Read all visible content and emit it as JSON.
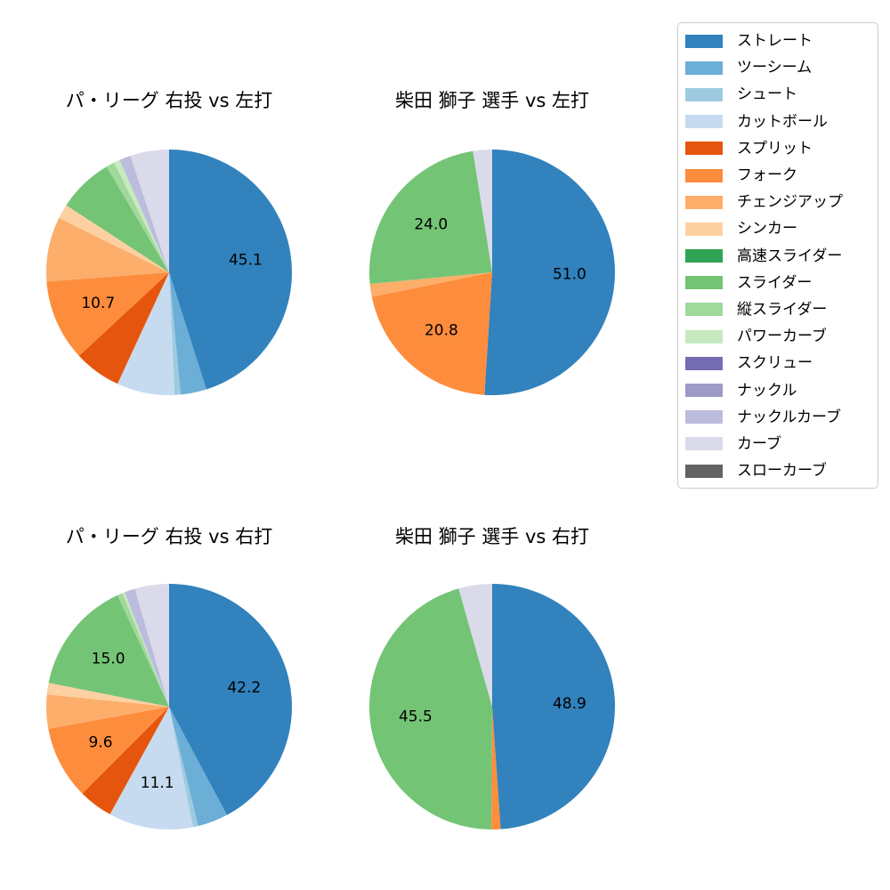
{
  "page": {
    "background_color": "#ffffff",
    "text_color": "#000000"
  },
  "chart_data": [
    {
      "type": "pie",
      "title": "パ・リーグ 右投 vs 左打",
      "start_angle": "top",
      "direction": "clockwise",
      "slices": [
        {
          "name": "ストレート",
          "value": 45.1,
          "label": "45.1"
        },
        {
          "name": "ツーシーム",
          "value": 3.4
        },
        {
          "name": "シュート",
          "value": 0.8
        },
        {
          "name": "カットボール",
          "value": 7.6
        },
        {
          "name": "スプリット",
          "value": 6.2
        },
        {
          "name": "フォーク",
          "value": 10.7,
          "label": "10.7"
        },
        {
          "name": "チェンジアップ",
          "value": 8.5
        },
        {
          "name": "シンカー",
          "value": 1.9
        },
        {
          "name": "スライダー",
          "value": 7.3
        },
        {
          "name": "縦スライダー",
          "value": 1.1
        },
        {
          "name": "パワーカーブ",
          "value": 0.8
        },
        {
          "name": "ナックルカーブ",
          "value": 1.5
        },
        {
          "name": "カーブ",
          "value": 5.1
        }
      ]
    },
    {
      "type": "pie",
      "title": "柴田 獅子 選手 vs 左打",
      "start_angle": "top",
      "direction": "clockwise",
      "slices": [
        {
          "name": "ストレート",
          "value": 51.0,
          "label": "51.0"
        },
        {
          "name": "フォーク",
          "value": 20.8,
          "label": "20.8"
        },
        {
          "name": "チェンジアップ",
          "value": 1.7
        },
        {
          "name": "スライダー",
          "value": 24.0,
          "label": "24.0"
        },
        {
          "name": "カーブ",
          "value": 2.5
        }
      ]
    },
    {
      "type": "pie",
      "title": "パ・リーグ 右投 vs 右打",
      "start_angle": "top",
      "direction": "clockwise",
      "slices": [
        {
          "name": "ストレート",
          "value": 42.2,
          "label": "42.2"
        },
        {
          "name": "ツーシーム",
          "value": 4.0
        },
        {
          "name": "シュート",
          "value": 0.7
        },
        {
          "name": "カットボール",
          "value": 11.1,
          "label": "11.1"
        },
        {
          "name": "スプリット",
          "value": 4.5
        },
        {
          "name": "フォーク",
          "value": 9.6,
          "label": "9.6"
        },
        {
          "name": "チェンジアップ",
          "value": 4.5
        },
        {
          "name": "シンカー",
          "value": 1.5
        },
        {
          "name": "スライダー",
          "value": 15.0,
          "label": "15.0"
        },
        {
          "name": "縦スライダー",
          "value": 0.7
        },
        {
          "name": "パワーカーブ",
          "value": 0.3
        },
        {
          "name": "ナックルカーブ",
          "value": 1.4
        },
        {
          "name": "カーブ",
          "value": 4.5
        }
      ]
    },
    {
      "type": "pie",
      "title": "柴田 獅子 選手 vs 右打",
      "start_angle": "top",
      "direction": "clockwise",
      "slices": [
        {
          "name": "ストレート",
          "value": 48.9,
          "label": "48.9"
        },
        {
          "name": "フォーク",
          "value": 1.2
        },
        {
          "name": "スライダー",
          "value": 45.5,
          "label": "45.5"
        },
        {
          "name": "カーブ",
          "value": 4.4
        }
      ]
    }
  ],
  "legend": {
    "position": "top-right",
    "border_color": "#cccccc",
    "entries": [
      {
        "label": "ストレート",
        "color": "#3182bd"
      },
      {
        "label": "ツーシーム",
        "color": "#6baed6"
      },
      {
        "label": "シュート",
        "color": "#9ecae1"
      },
      {
        "label": "カットボール",
        "color": "#c6dbef"
      },
      {
        "label": "スプリット",
        "color": "#e6550d"
      },
      {
        "label": "フォーク",
        "color": "#fd8d3c"
      },
      {
        "label": "チェンジアップ",
        "color": "#fdae6b"
      },
      {
        "label": "シンカー",
        "color": "#fdd0a2"
      },
      {
        "label": "高速スライダー",
        "color": "#31a354"
      },
      {
        "label": "スライダー",
        "color": "#74c476"
      },
      {
        "label": "縦スライダー",
        "color": "#a1d99b"
      },
      {
        "label": "パワーカーブ",
        "color": "#c7e9c0"
      },
      {
        "label": "スクリュー",
        "color": "#756bb1"
      },
      {
        "label": "ナックル",
        "color": "#9e9ac8"
      },
      {
        "label": "ナックルカーブ",
        "color": "#bcbddc"
      },
      {
        "label": "カーブ",
        "color": "#dadaeb"
      },
      {
        "label": "スローカーブ",
        "color": "#636363"
      }
    ]
  }
}
